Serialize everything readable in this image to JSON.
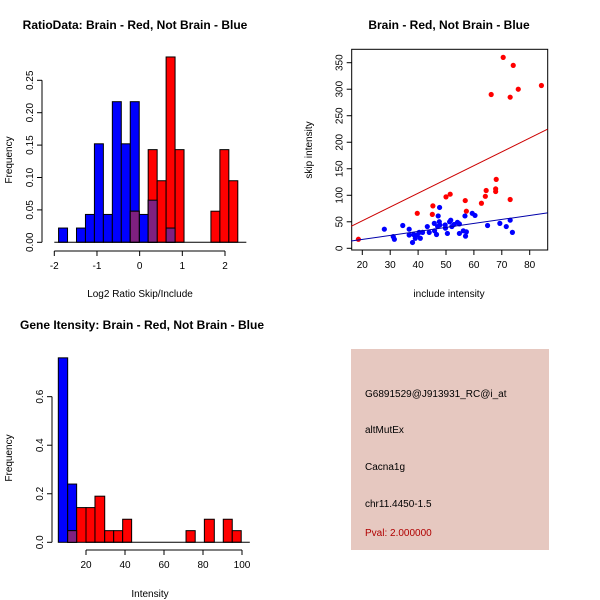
{
  "chart_data": [
    {
      "type": "bar",
      "title": "RatioData: Brain - Red, Not Brain - Blue",
      "xlabel": "Log2 Ratio Skip/Include",
      "ylabel": "Frequency",
      "xlim": [
        -2,
        2.5
      ],
      "ylim": [
        0,
        0.29
      ],
      "xticks": [
        "-2",
        "-1",
        "0",
        "1",
        "2"
      ],
      "yticks": [
        "0.00",
        "0.05",
        "0.10",
        "0.15",
        "0.20",
        "0.25"
      ],
      "series": [
        {
          "name": "Not Brain",
          "color": "#0000ff",
          "bins": [
            [
              -1.9,
              -1.69,
              0.022
            ],
            [
              -1.48,
              -1.27,
              0.022
            ],
            [
              -1.27,
              -1.06,
              0.043
            ],
            [
              -1.06,
              -0.85,
              0.152
            ],
            [
              -0.85,
              -0.64,
              0.043
            ],
            [
              -0.64,
              -0.43,
              0.217
            ],
            [
              -0.43,
              -0.22,
              0.152
            ],
            [
              -0.22,
              -0.01,
              0.217
            ],
            [
              -0.01,
              0.2,
              0.043
            ],
            [
              0.2,
              0.41,
              0.065
            ],
            [
              0.62,
              0.83,
              0.022
            ]
          ]
        },
        {
          "name": "Brain",
          "color": "#ff0000",
          "bins": [
            [
              -0.22,
              -0.01,
              0.048
            ],
            [
              0.2,
              0.41,
              0.143
            ],
            [
              0.41,
              0.62,
              0.095
            ],
            [
              0.62,
              0.83,
              0.286
            ],
            [
              0.83,
              1.04,
              0.143
            ],
            [
              1.67,
              1.88,
              0.048
            ],
            [
              1.88,
              2.09,
              0.143
            ],
            [
              2.09,
              2.3,
              0.095
            ]
          ]
        }
      ],
      "overlap_color": "#7f2080"
    },
    {
      "type": "scatter",
      "title": "Brain - Red, Not Brain - Blue",
      "xlabel": "include intensity",
      "ylabel": "skip intensity",
      "xlim": [
        16,
        86.4
      ],
      "ylim": [
        -5,
        375
      ],
      "xticks": [
        "20",
        "30",
        "40",
        "50",
        "60",
        "70",
        "80"
      ],
      "yticks": [
        "0",
        "50",
        "100",
        "150",
        "200",
        "250",
        "300",
        "350"
      ],
      "series": [
        {
          "name": "Brain",
          "color": "#ff0000",
          "fit": {
            "slope": 2.6,
            "intercept": -0.1,
            "color": "#cc0000"
          },
          "points": [
            [
              18.6,
              17
            ],
            [
              70.5,
              360
            ],
            [
              74.1,
              345
            ],
            [
              66.2,
              290
            ],
            [
              75.9,
              300
            ],
            [
              73.0,
              285
            ],
            [
              84.2,
              307
            ],
            [
              39.7,
              66
            ],
            [
              45.3,
              80
            ],
            [
              45.1,
              64
            ],
            [
              50.0,
              97
            ],
            [
              51.5,
              102
            ],
            [
              56.9,
              90
            ],
            [
              57.3,
              70
            ],
            [
              62.7,
              85
            ],
            [
              64.1,
              98
            ],
            [
              64.4,
              109
            ],
            [
              67.8,
              112
            ],
            [
              67.8,
              107
            ],
            [
              68.0,
              130
            ],
            [
              73.0,
              92
            ]
          ]
        },
        {
          "name": "Not Brain",
          "color": "#0000ff",
          "fit": {
            "slope": 0.754,
            "intercept": 1.6,
            "color": "#0000aa"
          },
          "points": [
            [
              27.9,
              36
            ],
            [
              31.1,
              22
            ],
            [
              31.5,
              17
            ],
            [
              34.5,
              43
            ],
            [
              36.8,
              36
            ],
            [
              36.8,
              25
            ],
            [
              38.0,
              11
            ],
            [
              38.4,
              26
            ],
            [
              39.0,
              19
            ],
            [
              39.7,
              25
            ],
            [
              40.4,
              30
            ],
            [
              40.8,
              19
            ],
            [
              41.6,
              30
            ],
            [
              43.3,
              41
            ],
            [
              44.0,
              30
            ],
            [
              45.8,
              47
            ],
            [
              45.9,
              33
            ],
            [
              46.6,
              26
            ],
            [
              47.0,
              41
            ],
            [
              47.2,
              61
            ],
            [
              47.7,
              77
            ],
            [
              47.6,
              50
            ],
            [
              47.8,
              44
            ],
            [
              49.7,
              44
            ],
            [
              49.8,
              38
            ],
            [
              50.5,
              28
            ],
            [
              51.3,
              50
            ],
            [
              51.7,
              53
            ],
            [
              52.1,
              41
            ],
            [
              52.9,
              45
            ],
            [
              54.1,
              49
            ],
            [
              54.8,
              46
            ],
            [
              54.8,
              28
            ],
            [
              56.2,
              33
            ],
            [
              56.8,
              61
            ],
            [
              57.0,
              23
            ],
            [
              57.3,
              31
            ],
            [
              59.4,
              66
            ],
            [
              60.4,
              62
            ],
            [
              64.9,
              43
            ],
            [
              69.3,
              47
            ],
            [
              71.6,
              41
            ],
            [
              73.0,
              53
            ],
            [
              73.8,
              30
            ]
          ]
        }
      ]
    },
    {
      "type": "bar",
      "title": "Gene Itensity: Brain - Red, Not Brain - Blue",
      "xlabel": "Intensity",
      "ylabel": "Frequency",
      "xlim": [
        0,
        104
      ],
      "ylim": [
        0,
        0.8
      ],
      "xticks": [
        "20",
        "40",
        "60",
        "80",
        "100"
      ],
      "yticks": [
        "0.0",
        "0.2",
        "0.4",
        "0.6"
      ],
      "series": [
        {
          "name": "Not Brain",
          "color": "#0000ff",
          "bins": [
            [
              5.8,
              10.6,
              0.76
            ],
            [
              10.6,
              15.2,
              0.24
            ]
          ]
        },
        {
          "name": "Brain",
          "color": "#ff0000",
          "bins": [
            [
              10.6,
              15.2,
              0.048
            ],
            [
              15.2,
              20,
              0.143
            ],
            [
              20,
              24.6,
              0.143
            ],
            [
              24.6,
              29.6,
              0.19
            ],
            [
              29.6,
              34.2,
              0.048
            ],
            [
              34.2,
              38.8,
              0.048
            ],
            [
              38.8,
              43.4,
              0.095
            ],
            [
              71.3,
              76,
              0.048
            ],
            [
              80.7,
              85.8,
              0.095
            ],
            [
              90.4,
              95,
              0.095
            ],
            [
              95,
              99.6,
              0.048
            ]
          ]
        }
      ],
      "overlap_color": "#7f2080"
    }
  ],
  "info_panel": {
    "background": "#e6c8c0",
    "probe_id": "G6891529@J913931_RC@i_at",
    "event_type": "altMutEx",
    "gene": "Cacna1g",
    "location": "chr11.4450-1.5",
    "pval": "Pval: 2.000000",
    "pval_color": "#b00000"
  }
}
